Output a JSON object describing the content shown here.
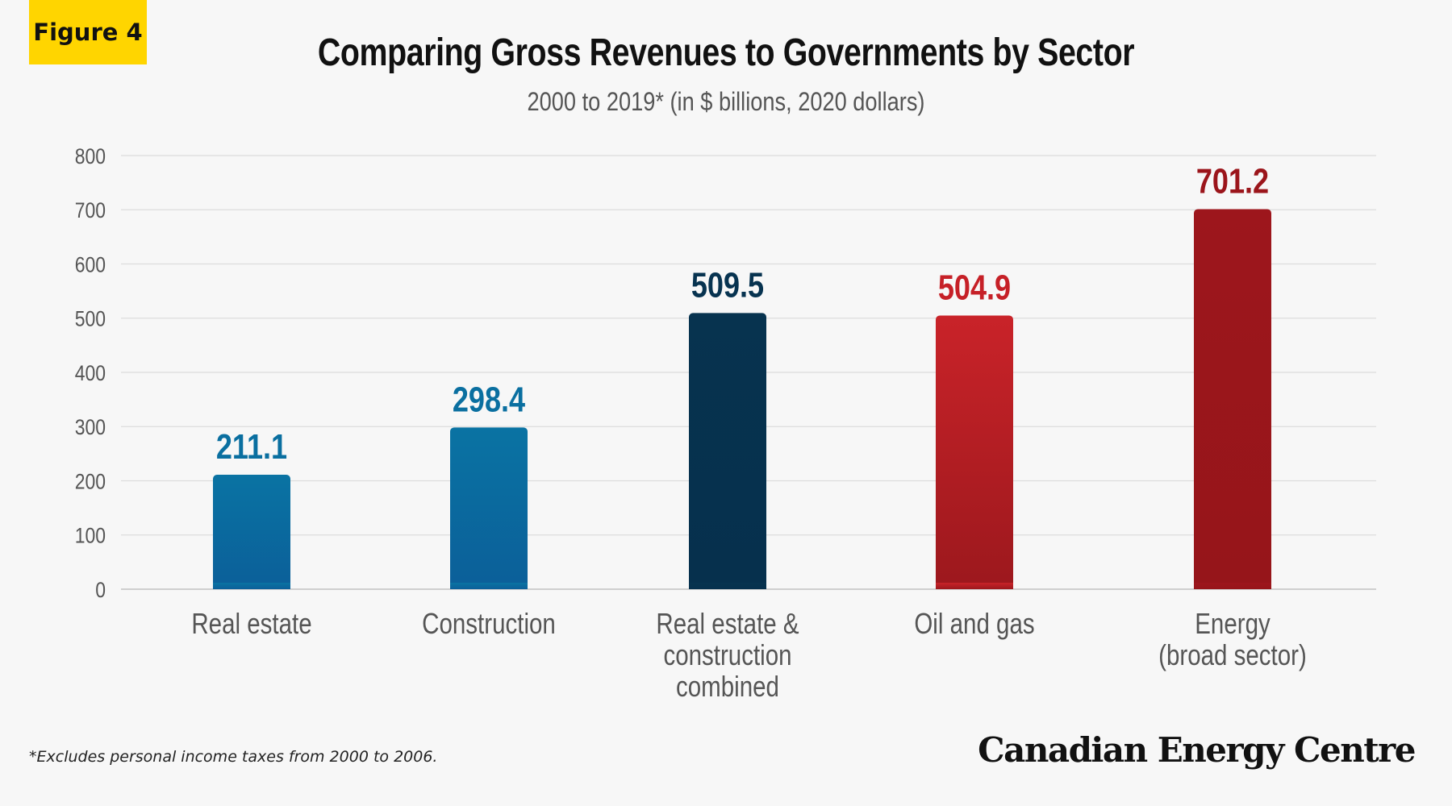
{
  "badge": "Figure 4",
  "footnote": "*Excludes personal income taxes from 2000 to 2006.",
  "brand": "Canadian Energy Centre",
  "chart_data": {
    "type": "bar",
    "title": "Comparing Gross Revenues to Governments by Sector",
    "subtitle": "2000 to 2019* (in $ billions, 2020 dollars)",
    "xlabel": "",
    "ylabel": "",
    "ylim": [
      0,
      800
    ],
    "yticks": [
      0,
      100,
      200,
      300,
      400,
      500,
      600,
      700,
      800
    ],
    "grid": true,
    "categories": [
      [
        "Real estate"
      ],
      [
        "Construction"
      ],
      [
        "Real estate &",
        "construction",
        "combined"
      ],
      [
        "Oil and gas"
      ],
      [
        "Energy",
        "(broad sector)"
      ]
    ],
    "values": [
      211.1,
      298.4,
      509.5,
      504.9,
      701.2
    ],
    "value_labels": [
      "211.1",
      "298.4",
      "509.5",
      "504.9",
      "701.2"
    ],
    "colors": [
      "#0a6fa0",
      "#0a6fa0",
      "#073350",
      "#c62027",
      "#9b151b"
    ]
  }
}
